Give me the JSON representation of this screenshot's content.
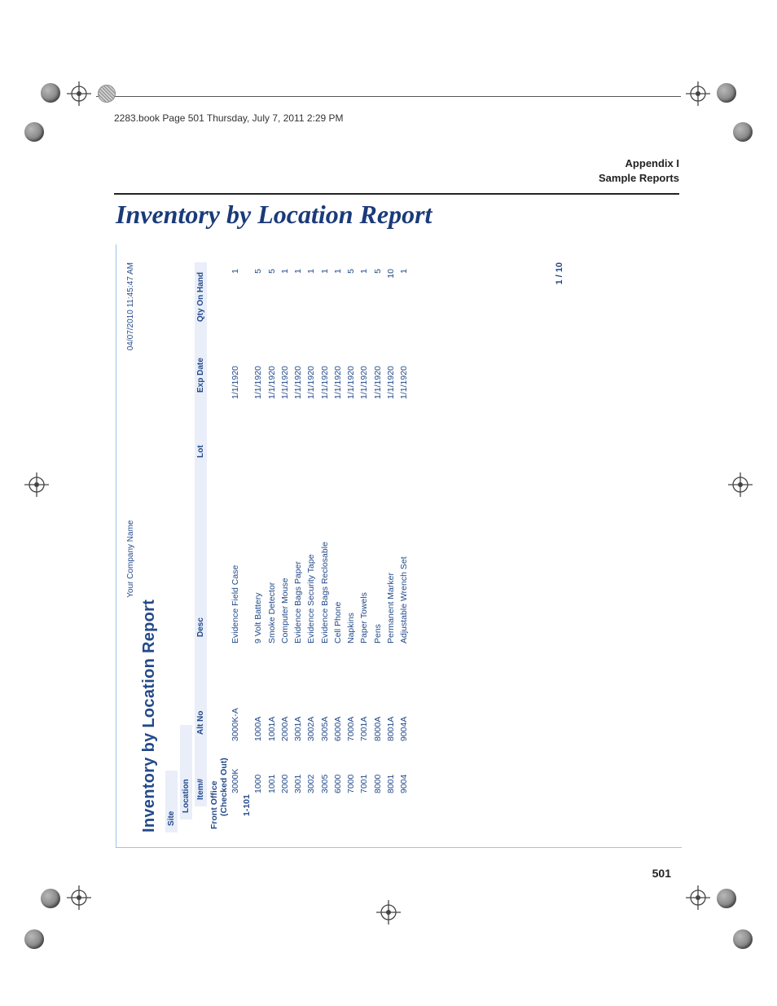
{
  "printmark": {
    "header_line": "2283.book  Page 501  Thursday, July 7, 2011  2:29 PM"
  },
  "appendix": {
    "line1": "Appendix I",
    "line2": "Sample Reports"
  },
  "page_title": "Inventory by Location Report",
  "book_page_number": "501",
  "report": {
    "company": "Your Company Name",
    "timestamp": "04/07/2010 11:45:47 AM",
    "title": "Inventory by Location Report",
    "page_indicator": "1 / 10",
    "labels": {
      "site": "Site",
      "location": "Location",
      "item": "Item#",
      "alt": "Alt No",
      "desc": "Desc",
      "lot": "Lot",
      "exp": "Exp Date",
      "qty": "Qty On Hand"
    },
    "colors": {
      "text": "#234a8a",
      "frame_border": "#9cc2f0",
      "banner_bg": "#e9eef9",
      "doc_title": "#1a3b7a"
    },
    "site": "Front Office",
    "groups": [
      {
        "location": "(Checked Out)",
        "sub": null,
        "rows": [
          {
            "item": "3000K",
            "alt": "3000K-A",
            "desc": "Evidence Field Case",
            "lot": "",
            "exp": "1/1/1920",
            "qty": "1"
          }
        ]
      },
      {
        "location": "1-101",
        "sub": null,
        "rows": [
          {
            "item": "1000",
            "alt": "1000A",
            "desc": "9 Volt Battery",
            "lot": "",
            "exp": "1/1/1920",
            "qty": "5"
          },
          {
            "item": "1001",
            "alt": "1001A",
            "desc": "Smoke Detector",
            "lot": "",
            "exp": "1/1/1920",
            "qty": "5"
          },
          {
            "item": "2000",
            "alt": "2000A",
            "desc": "Computer Mouse",
            "lot": "",
            "exp": "1/1/1920",
            "qty": "1"
          },
          {
            "item": "3001",
            "alt": "3001A",
            "desc": "Evidence Bags Paper",
            "lot": "",
            "exp": "1/1/1920",
            "qty": "1"
          },
          {
            "item": "3002",
            "alt": "3002A",
            "desc": "Evidence Security Tape",
            "lot": "",
            "exp": "1/1/1920",
            "qty": "1"
          },
          {
            "item": "3005",
            "alt": "3005A",
            "desc": "Evidence Bags Reclosable",
            "lot": "",
            "exp": "1/1/1920",
            "qty": "1"
          },
          {
            "item": "6000",
            "alt": "6000A",
            "desc": "Cell Phone",
            "lot": "",
            "exp": "1/1/1920",
            "qty": "1"
          },
          {
            "item": "7000",
            "alt": "7000A",
            "desc": "Napkins",
            "lot": "",
            "exp": "1/1/1920",
            "qty": "5"
          },
          {
            "item": "7001",
            "alt": "7001A",
            "desc": "Paper Towels",
            "lot": "",
            "exp": "1/1/1920",
            "qty": "1"
          },
          {
            "item": "8000",
            "alt": "8000A",
            "desc": "Pens",
            "lot": "",
            "exp": "1/1/1920",
            "qty": "5"
          },
          {
            "item": "8001",
            "alt": "8001A",
            "desc": "Permanent Marker",
            "lot": "",
            "exp": "1/1/1920",
            "qty": "10"
          },
          {
            "item": "9004",
            "alt": "9004A",
            "desc": "Adjustable Wrench Set",
            "lot": "",
            "exp": "1/1/1920",
            "qty": "1"
          }
        ]
      }
    ]
  }
}
